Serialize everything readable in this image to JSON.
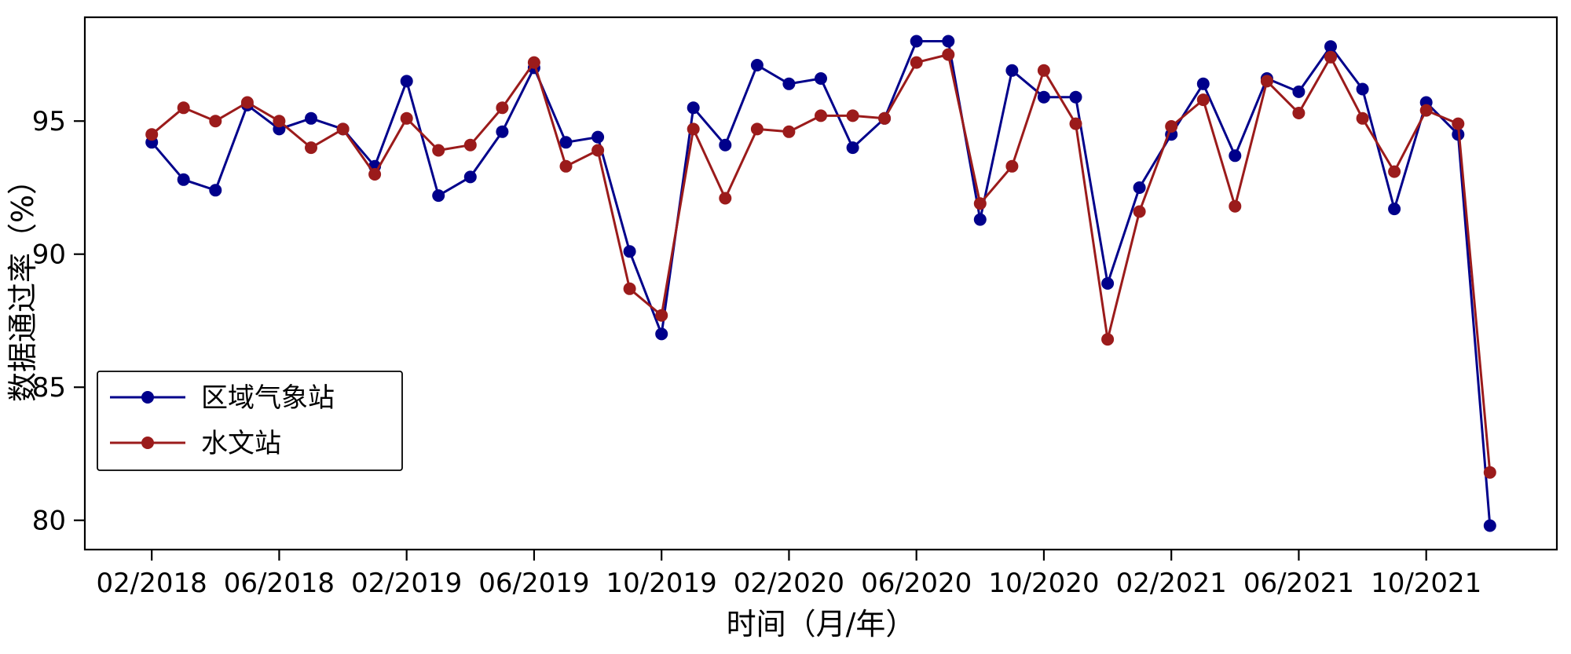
{
  "figure": {
    "background": "#ffffff"
  },
  "chart_data": {
    "type": "line",
    "title": "",
    "xlabel": "时间（月/年）",
    "ylabel": "数据通过率（%）",
    "grid": false,
    "legend_position": "lower-left",
    "ylim": [
      78.9,
      98.9
    ],
    "y_ticks": [
      80,
      85,
      90,
      95
    ],
    "x_tick_positions": [
      0,
      4,
      8,
      12,
      16,
      20,
      24,
      28,
      32,
      36,
      40
    ],
    "x_tick_labels": [
      "02/2018",
      "06/2018",
      "02/2019",
      "06/2019",
      "10/2019",
      "02/2020",
      "06/2020",
      "10/2020",
      "02/2021",
      "06/2021",
      "10/2021"
    ],
    "series": [
      {
        "name": "区域气象站",
        "color": "#00008B",
        "marker": "circle",
        "values": [
          94.2,
          92.8,
          92.4,
          95.6,
          94.7,
          95.1,
          94.7,
          93.3,
          96.5,
          92.2,
          92.9,
          94.6,
          97.0,
          94.2,
          94.4,
          90.1,
          87.0,
          95.5,
          94.1,
          97.1,
          96.4,
          96.6,
          94.0,
          95.1,
          98.0,
          98.0,
          91.3,
          96.9,
          95.9,
          95.9,
          88.9,
          92.5,
          94.5,
          96.4,
          93.7,
          96.6,
          96.1,
          97.8,
          96.2,
          91.7,
          95.7,
          94.5,
          79.8
        ]
      },
      {
        "name": "水文站",
        "color": "#9B1B1B",
        "marker": "circle",
        "values": [
          94.5,
          95.5,
          95.0,
          95.7,
          95.0,
          94.0,
          94.7,
          93.0,
          95.1,
          93.9,
          94.1,
          95.5,
          97.2,
          93.3,
          93.9,
          88.7,
          87.7,
          94.7,
          92.1,
          94.7,
          94.6,
          95.2,
          95.2,
          95.1,
          97.2,
          97.5,
          91.9,
          93.3,
          96.9,
          94.9,
          86.8,
          91.6,
          94.8,
          95.8,
          91.8,
          96.5,
          95.3,
          97.4,
          95.1,
          93.1,
          95.4,
          94.9,
          81.8
        ]
      }
    ]
  }
}
